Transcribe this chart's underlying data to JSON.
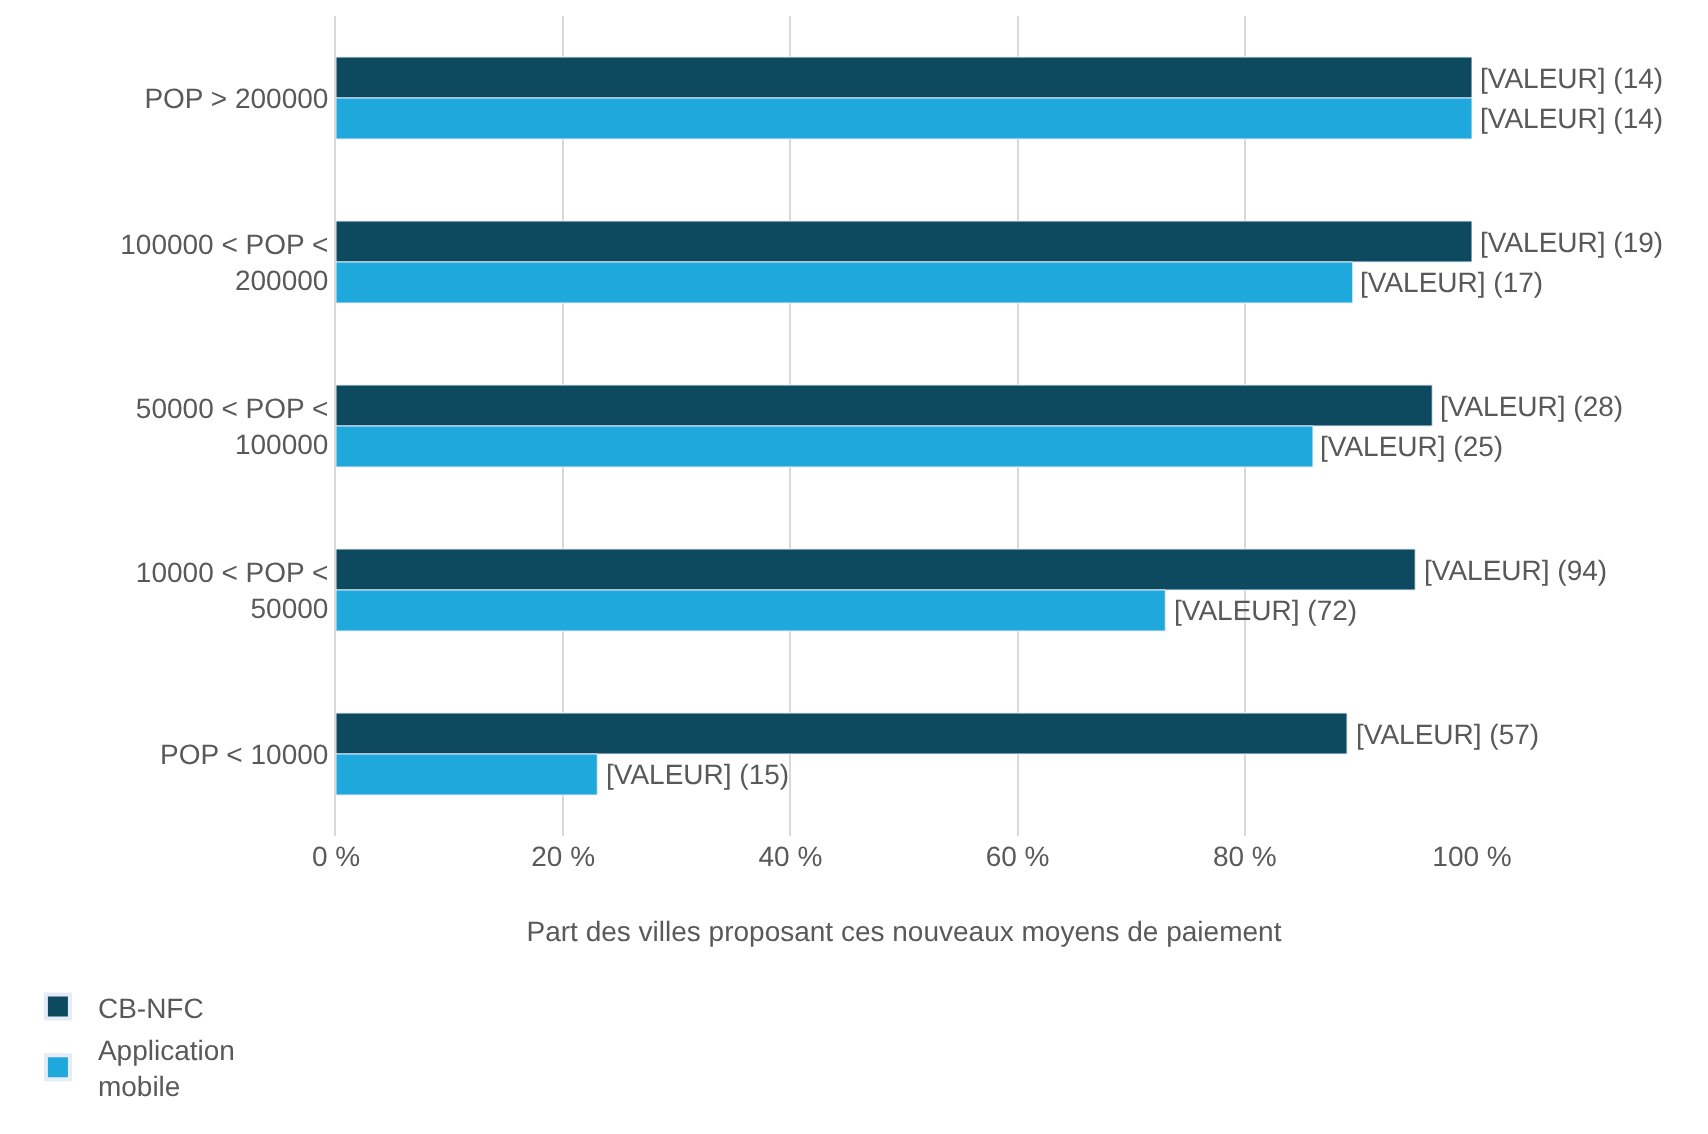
{
  "chart_data": {
    "type": "bar",
    "orientation": "horizontal",
    "xlabel": "Part des villes proposant ces nouveaux moyens de paiement",
    "categories": [
      "POP > 200000",
      "100000 < POP < 200000",
      "50000 < POP < 100000",
      "10000 < POP < 50000",
      "POP < 10000"
    ],
    "series": [
      {
        "name": "CB-NFC",
        "color": "#0e4a5f",
        "values": [
          100,
          100,
          96.5,
          95,
          89
        ]
      },
      {
        "name": "Application mobile",
        "color": "#1fa8dc",
        "values": [
          100,
          89.5,
          86,
          73,
          23
        ]
      }
    ],
    "annotations": [
      {
        "text": "[VALEUR] (14)",
        "x": 100,
        "y": "POP > 200000"
      },
      {
        "text": "[VALEUR] (14)",
        "x": 100,
        "y": "POP > 200000"
      },
      {
        "text": "[VALEUR] (19)",
        "x": 100,
        "y": "100000 < POP < 200000"
      },
      {
        "text": "[VALEUR] (17)",
        "x": 89.5,
        "y": "100000 < POP < 200000"
      },
      {
        "text": "[VALEUR] (28)",
        "x": 96.5,
        "y": "50000 < POP < 100000"
      },
      {
        "text": "[VALEUR] (25)",
        "x": 86,
        "y": "50000 < POP < 100000"
      },
      {
        "text": "[VALEUR] (94)",
        "x": 95,
        "y": "10000 < POP < 50000"
      },
      {
        "text": "[VALEUR] (72)",
        "x": 73,
        "y": "10000 < POP < 50000"
      },
      {
        "text": "[VALEUR] (57)",
        "x": 89,
        "y": "POP < 10000"
      },
      {
        "text": "[VALEUR] (15)",
        "x": 23,
        "y": "POP < 10000"
      }
    ],
    "xlim": [
      0,
      100
    ],
    "xticks": [
      {
        "value": 0,
        "label": "0 %"
      },
      {
        "value": 20,
        "label": "20 %"
      },
      {
        "value": 40,
        "label": "40 %"
      },
      {
        "value": 60,
        "label": "60 %"
      },
      {
        "value": 80,
        "label": "80 %"
      },
      {
        "value": 100,
        "label": "100 %"
      }
    ],
    "grid": "x",
    "legend": "bottom left"
  }
}
